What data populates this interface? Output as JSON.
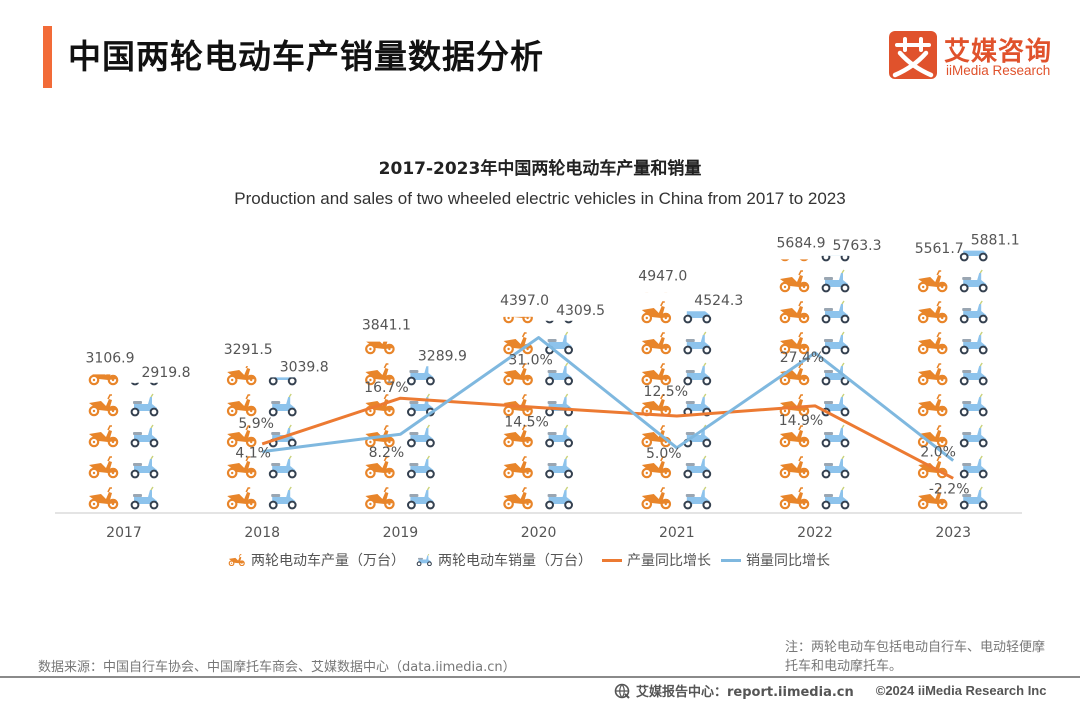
{
  "header": {
    "title": "中国两轮电动车产销量数据分析",
    "logo_cn": "艾媒咨询",
    "logo_en": "iiMedia Research",
    "logo_glyph": "艾"
  },
  "colors": {
    "accent": "#F26B38",
    "brand": "#E0522C",
    "production": "#E8852A",
    "sales": "#8DC3EC",
    "production_line": "#EC7A32",
    "sales_line": "#7FB8DF"
  },
  "chart_data": {
    "type": "bar",
    "title": "2017-2023年中国两轮电动车产量和销量",
    "subtitle": "Production and sales of two wheeled electric vehicles in China from 2017 to 2023",
    "categories": [
      "2017",
      "2018",
      "2019",
      "2020",
      "2021",
      "2022",
      "2023"
    ],
    "series": [
      {
        "name": "两轮电动车产量（万台）",
        "kind": "pictograph-bar",
        "icon": "orange-scooter-icon",
        "color": "#E8852A",
        "values": [
          3106.9,
          3291.5,
          3841.1,
          4397.0,
          4947.0,
          5684.9,
          5561.7
        ],
        "labels": [
          "3106.9",
          "3291.5",
          "3841.1",
          "4397.0",
          "4947.0",
          "5684.9",
          "5561.7"
        ]
      },
      {
        "name": "两轮电动车销量（万台）",
        "kind": "pictograph-bar",
        "icon": "blue-scooter-icon",
        "color": "#8DC3EC",
        "values": [
          2919.8,
          3039.8,
          3289.9,
          4309.5,
          4524.3,
          5763.3,
          5881.1
        ],
        "labels": [
          "2919.8",
          "3039.8",
          "3289.9",
          "4309.5",
          "4524.3",
          "5763.3",
          "5881.1"
        ]
      },
      {
        "name": "产量同比增长",
        "kind": "line",
        "color": "#EC7A32",
        "values": [
          null,
          5.9,
          16.7,
          14.5,
          12.5,
          14.9,
          -2.2
        ],
        "labels": [
          null,
          "5.9%",
          "16.7%",
          "14.5%",
          "12.5%",
          "14.9%",
          "-2.2%"
        ]
      },
      {
        "name": "销量同比增长",
        "kind": "line",
        "color": "#7FB8DF",
        "values": [
          null,
          4.1,
          8.2,
          31.0,
          5.0,
          27.4,
          2.0
        ],
        "labels": [
          null,
          "4.1%",
          "8.2%",
          "31.0%",
          "5.0%",
          "27.4%",
          "2.0%"
        ]
      }
    ],
    "units": {
      "bars": "万台",
      "lines": "%"
    },
    "ylim_bars": [
      0,
      6000
    ],
    "ylim_lines": [
      -10,
      40
    ],
    "grid": false,
    "legend": "bottom-center"
  },
  "legend": {
    "items": [
      {
        "label": "两轮电动车产量（万台）",
        "type": "icon",
        "icon": "orange-scooter-icon"
      },
      {
        "label": "两轮电动车销量（万台）",
        "type": "icon",
        "icon": "blue-scooter-icon"
      },
      {
        "label": "产量同比增长",
        "type": "line"
      },
      {
        "label": "销量同比增长",
        "type": "line"
      }
    ]
  },
  "footer": {
    "source": "数据来源：中国自行车协会、中国摩托车商会、艾媒数据中心（data.iimedia.cn）",
    "note": "注：两轮电动车包括电动自行车、电动轻便摩托车和电动摩托车。",
    "report_site": "艾媒报告中心：report.iimedia.cn",
    "copyright": "©2024 iiMedia Research  Inc"
  }
}
